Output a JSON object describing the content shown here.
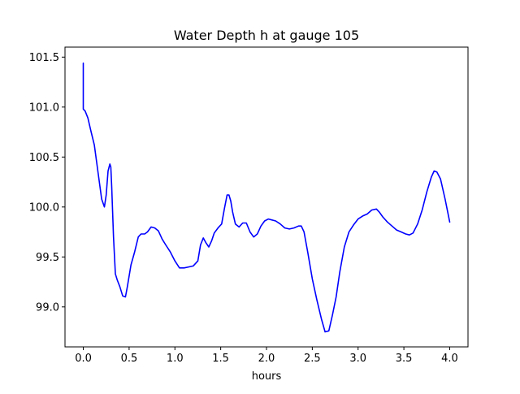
{
  "chart_data": {
    "type": "line",
    "title": "Water Depth h at gauge 105",
    "xlabel": "hours",
    "ylabel": "",
    "xlim": [
      -0.2,
      4.2
    ],
    "ylim": [
      98.6,
      101.6
    ],
    "xticks": [
      0.0,
      0.5,
      1.0,
      1.5,
      2.0,
      2.5,
      3.0,
      3.5,
      4.0
    ],
    "xtick_labels": [
      "0.0",
      "0.5",
      "1.0",
      "1.5",
      "2.0",
      "2.5",
      "3.0",
      "3.5",
      "4.0"
    ],
    "yticks": [
      99.0,
      99.5,
      100.0,
      100.5,
      101.0,
      101.5
    ],
    "ytick_labels": [
      "99.0",
      "99.5",
      "100.0",
      "100.5",
      "101.0",
      "101.5"
    ],
    "grid": false,
    "legend": "none",
    "series": [
      {
        "color": "#0000ff",
        "x": [
          0.0,
          0.0,
          0.02,
          0.05,
          0.08,
          0.12,
          0.16,
          0.2,
          0.23,
          0.25,
          0.27,
          0.29,
          0.3,
          0.31,
          0.33,
          0.35,
          0.37,
          0.4,
          0.43,
          0.46,
          0.48,
          0.52,
          0.56,
          0.6,
          0.63,
          0.67,
          0.7,
          0.74,
          0.78,
          0.82,
          0.86,
          0.9,
          0.95,
          1.0,
          1.05,
          1.1,
          1.15,
          1.2,
          1.25,
          1.28,
          1.31,
          1.34,
          1.37,
          1.4,
          1.43,
          1.47,
          1.51,
          1.54,
          1.57,
          1.59,
          1.61,
          1.63,
          1.66,
          1.7,
          1.74,
          1.78,
          1.82,
          1.86,
          1.9,
          1.94,
          1.98,
          2.02,
          2.06,
          2.1,
          2.15,
          2.2,
          2.25,
          2.3,
          2.35,
          2.38,
          2.41,
          2.45,
          2.5,
          2.55,
          2.6,
          2.64,
          2.68,
          2.72,
          2.76,
          2.8,
          2.85,
          2.9,
          2.95,
          3.0,
          3.05,
          3.1,
          3.15,
          3.2,
          3.23,
          3.27,
          3.32,
          3.37,
          3.42,
          3.47,
          3.52,
          3.56,
          3.6,
          3.65,
          3.7,
          3.75,
          3.8,
          3.83,
          3.86,
          3.9,
          3.95,
          4.0
        ],
        "y": [
          101.44,
          100.98,
          100.96,
          100.89,
          100.77,
          100.62,
          100.35,
          100.08,
          100.0,
          100.12,
          100.36,
          100.43,
          100.4,
          100.2,
          99.7,
          99.33,
          99.27,
          99.2,
          99.11,
          99.1,
          99.2,
          99.42,
          99.55,
          99.7,
          99.73,
          99.73,
          99.75,
          99.8,
          99.79,
          99.76,
          99.68,
          99.62,
          99.55,
          99.46,
          99.39,
          99.39,
          99.4,
          99.41,
          99.46,
          99.62,
          99.69,
          99.64,
          99.6,
          99.66,
          99.74,
          99.79,
          99.83,
          99.98,
          100.12,
          100.12,
          100.06,
          99.95,
          99.83,
          99.8,
          99.84,
          99.84,
          99.75,
          99.7,
          99.73,
          99.81,
          99.86,
          99.88,
          99.87,
          99.86,
          99.83,
          99.79,
          99.78,
          99.79,
          99.81,
          99.81,
          99.75,
          99.55,
          99.28,
          99.07,
          98.88,
          98.75,
          98.76,
          98.92,
          99.1,
          99.35,
          99.6,
          99.75,
          99.82,
          99.88,
          99.91,
          99.93,
          99.97,
          99.98,
          99.95,
          99.9,
          99.85,
          99.81,
          99.77,
          99.75,
          99.73,
          99.72,
          99.74,
          99.83,
          99.97,
          100.15,
          100.3,
          100.36,
          100.35,
          100.28,
          100.08,
          99.85
        ]
      }
    ]
  }
}
